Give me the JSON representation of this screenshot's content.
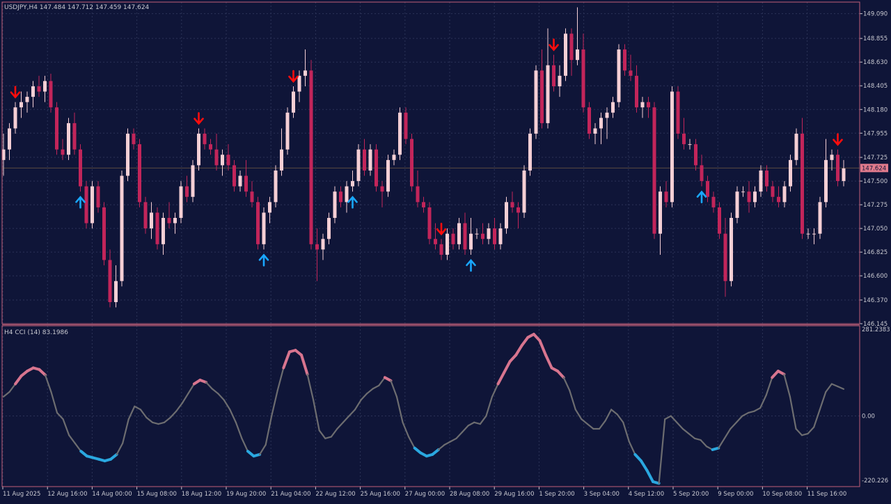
{
  "colors": {
    "background": "#0f1538",
    "border": "#c06078",
    "grid": "#2c3358",
    "text": "#c8c8d0",
    "bull": "#f5cfd5",
    "bear": "#c2255a",
    "arrow_down": "#ff0d0d",
    "arrow_up": "#19a7ff",
    "cci_neutral": "#6d6d70",
    "cci_high": "#d8758f",
    "cci_low": "#2aa8e0",
    "price_label_bg": "#e07a8c"
  },
  "main_panel": {
    "header": "USDJPY,H4  147.484 147.712 147.459 147.624",
    "current_price": "147.624"
  },
  "indicator_panel": {
    "header": "H4 CCI (14) 83.1986"
  },
  "chart_data": [
    {
      "type": "candlestick",
      "symbol": "USDJPY",
      "timeframe": "H4",
      "ohlc_last": {
        "open": 147.484,
        "high": 147.712,
        "low": 147.459,
        "close": 147.624
      },
      "ylim": [
        146.145,
        149.2
      ],
      "y_ticks": [
        "149.090",
        "148.855",
        "148.630",
        "148.405",
        "148.180",
        "147.955",
        "147.725",
        "147.500",
        "147.275",
        "147.050",
        "146.825",
        "146.600",
        "146.370",
        "146.145"
      ],
      "x_ticks": [
        "11 Aug 2025",
        "12 Aug 16:00",
        "14 Aug 00:00",
        "15 Aug 08:00",
        "18 Aug 12:00",
        "19 Aug 20:00",
        "21 Aug 04:00",
        "22 Aug 12:00",
        "25 Aug 16:00",
        "27 Aug 00:00",
        "28 Aug 08:00",
        "29 Aug 16:00",
        "1 Sep 20:00",
        "3 Sep 04:00",
        "4 Sep 12:00",
        "5 Sep 20:00",
        "9 Sep 00:00",
        "10 Sep 08:00",
        "11 Sep 16:00"
      ],
      "candles": [
        [
          147.7,
          147.95,
          147.55,
          147.8
        ],
        [
          147.8,
          148.05,
          147.7,
          148.0
        ],
        [
          148.0,
          148.25,
          147.95,
          148.2
        ],
        [
          148.2,
          148.35,
          148.1,
          148.25
        ],
        [
          148.25,
          148.35,
          148.15,
          148.3
        ],
        [
          148.3,
          148.45,
          148.2,
          148.4
        ],
        [
          148.4,
          148.5,
          148.3,
          148.35
        ],
        [
          148.35,
          148.5,
          148.25,
          148.45
        ],
        [
          148.45,
          148.52,
          148.15,
          148.2
        ],
        [
          148.2,
          148.25,
          147.75,
          147.8
        ],
        [
          147.8,
          147.9,
          147.7,
          147.75
        ],
        [
          147.75,
          148.1,
          147.7,
          148.05
        ],
        [
          148.05,
          148.15,
          147.75,
          147.8
        ],
        [
          147.8,
          147.85,
          147.4,
          147.45
        ],
        [
          147.45,
          147.5,
          147.05,
          147.1
        ],
        [
          147.1,
          147.5,
          147.05,
          147.45
        ],
        [
          147.45,
          147.5,
          147.2,
          147.25
        ],
        [
          147.25,
          147.3,
          146.7,
          146.75
        ],
        [
          146.75,
          146.85,
          146.3,
          146.35
        ],
        [
          146.35,
          146.7,
          146.3,
          146.55
        ],
        [
          146.55,
          147.6,
          146.5,
          147.55
        ],
        [
          147.55,
          148.0,
          147.5,
          147.95
        ],
        [
          147.95,
          148.0,
          147.8,
          147.85
        ],
        [
          147.85,
          147.9,
          147.25,
          147.3
        ],
        [
          147.3,
          147.35,
          147.0,
          147.05
        ],
        [
          147.05,
          147.3,
          146.95,
          147.2
        ],
        [
          147.2,
          147.25,
          146.85,
          146.9
        ],
        [
          146.9,
          147.2,
          146.8,
          147.15
        ],
        [
          147.15,
          147.3,
          147.05,
          147.1
        ],
        [
          147.1,
          147.2,
          147.0,
          147.15
        ],
        [
          147.15,
          147.5,
          147.1,
          147.45
        ],
        [
          147.45,
          147.55,
          147.3,
          147.35
        ],
        [
          147.35,
          147.7,
          147.3,
          147.65
        ],
        [
          147.65,
          148.0,
          147.6,
          147.95
        ],
        [
          147.95,
          148.0,
          147.8,
          147.85
        ],
        [
          147.85,
          147.9,
          147.75,
          147.8
        ],
        [
          147.8,
          147.95,
          147.6,
          147.65
        ],
        [
          147.65,
          147.8,
          147.55,
          147.75
        ],
        [
          147.75,
          147.85,
          147.6,
          147.65
        ],
        [
          147.65,
          147.7,
          147.4,
          147.45
        ],
        [
          147.45,
          147.6,
          147.4,
          147.55
        ],
        [
          147.55,
          147.7,
          147.35,
          147.4
        ],
        [
          147.4,
          147.5,
          147.25,
          147.3
        ],
        [
          147.3,
          147.35,
          146.85,
          146.9
        ],
        [
          146.9,
          147.25,
          146.85,
          147.2
        ],
        [
          147.2,
          147.35,
          147.1,
          147.3
        ],
        [
          147.3,
          147.65,
          147.25,
          147.6
        ],
        [
          147.6,
          148.0,
          147.55,
          147.8
        ],
        [
          147.8,
          148.2,
          147.75,
          148.15
        ],
        [
          148.15,
          148.4,
          148.1,
          148.35
        ],
        [
          148.35,
          148.55,
          148.25,
          148.5
        ],
        [
          148.5,
          148.75,
          148.4,
          148.55
        ],
        [
          148.55,
          148.65,
          146.85,
          146.9
        ],
        [
          146.9,
          147.05,
          146.55,
          146.85
        ],
        [
          146.85,
          147.0,
          146.75,
          146.95
        ],
        [
          146.95,
          147.2,
          146.9,
          147.15
        ],
        [
          147.15,
          147.45,
          147.1,
          147.4
        ],
        [
          147.4,
          147.45,
          147.25,
          147.3
        ],
        [
          147.3,
          147.5,
          147.2,
          147.45
        ],
        [
          147.45,
          147.6,
          147.4,
          147.5
        ],
        [
          147.5,
          147.85,
          147.45,
          147.8
        ],
        [
          147.8,
          147.9,
          147.55,
          147.6
        ],
        [
          147.6,
          147.85,
          147.55,
          147.8
        ],
        [
          147.8,
          147.85,
          147.4,
          147.45
        ],
        [
          147.45,
          147.5,
          147.25,
          147.4
        ],
        [
          147.4,
          147.75,
          147.35,
          147.7
        ],
        [
          147.7,
          147.8,
          147.65,
          147.75
        ],
        [
          147.75,
          148.2,
          147.7,
          148.15
        ],
        [
          148.15,
          148.2,
          147.85,
          147.9
        ],
        [
          147.9,
          147.95,
          147.4,
          147.45
        ],
        [
          147.45,
          147.6,
          147.25,
          147.3
        ],
        [
          147.3,
          147.35,
          147.2,
          147.25
        ],
        [
          147.25,
          147.3,
          146.9,
          146.95
        ],
        [
          146.95,
          147.1,
          146.85,
          146.9
        ],
        [
          146.9,
          146.95,
          146.75,
          146.8
        ],
        [
          146.8,
          147.05,
          146.75,
          147.0
        ],
        [
          147.0,
          147.05,
          146.85,
          146.9
        ],
        [
          146.9,
          147.15,
          146.85,
          147.1
        ],
        [
          147.1,
          147.2,
          146.8,
          146.85
        ],
        [
          146.85,
          147.15,
          146.8,
          147.0
        ],
        [
          147.0,
          147.05,
          146.95,
          147.0
        ],
        [
          147.0,
          147.1,
          146.9,
          146.95
        ],
        [
          146.95,
          147.1,
          146.9,
          147.05
        ],
        [
          147.05,
          147.15,
          146.85,
          146.9
        ],
        [
          146.9,
          147.1,
          146.85,
          147.05
        ],
        [
          147.05,
          147.35,
          147.0,
          147.3
        ],
        [
          147.3,
          147.4,
          147.2,
          147.25
        ],
        [
          147.25,
          147.3,
          147.05,
          147.2
        ],
        [
          147.2,
          147.65,
          147.15,
          147.6
        ],
        [
          147.6,
          148.0,
          147.55,
          147.95
        ],
        [
          147.95,
          148.6,
          147.9,
          148.55
        ],
        [
          148.55,
          148.75,
          148.0,
          148.05
        ],
        [
          148.05,
          148.95,
          148.0,
          148.6
        ],
        [
          148.6,
          148.7,
          148.35,
          148.4
        ],
        [
          148.4,
          148.6,
          148.3,
          148.5
        ],
        [
          148.5,
          148.95,
          148.45,
          148.9
        ],
        [
          148.9,
          148.95,
          148.5,
          148.65
        ],
        [
          148.65,
          149.15,
          148.6,
          148.75
        ],
        [
          148.75,
          148.9,
          148.15,
          148.2
        ],
        [
          148.2,
          148.25,
          147.9,
          147.95
        ],
        [
          147.95,
          148.05,
          147.85,
          148.0
        ],
        [
          148.0,
          148.15,
          147.85,
          148.1
        ],
        [
          148.1,
          148.2,
          147.9,
          148.15
        ],
        [
          148.15,
          148.3,
          148.1,
          148.25
        ],
        [
          148.25,
          148.8,
          148.2,
          148.75
        ],
        [
          148.75,
          148.8,
          148.5,
          148.55
        ],
        [
          148.55,
          148.7,
          148.45,
          148.5
        ],
        [
          148.5,
          148.6,
          148.15,
          148.2
        ],
        [
          148.2,
          148.3,
          148.1,
          148.25
        ],
        [
          148.25,
          148.3,
          148.1,
          148.2
        ],
        [
          148.2,
          148.25,
          146.95,
          147.0
        ],
        [
          147.0,
          147.45,
          146.8,
          147.4
        ],
        [
          147.4,
          147.5,
          147.25,
          147.3
        ],
        [
          147.3,
          148.4,
          147.25,
          148.35
        ],
        [
          148.35,
          148.4,
          147.9,
          147.95
        ],
        [
          147.95,
          148.1,
          147.8,
          147.85
        ],
        [
          147.85,
          147.9,
          147.8,
          147.85
        ],
        [
          147.85,
          147.9,
          147.6,
          147.65
        ],
        [
          147.65,
          147.75,
          147.45,
          147.5
        ],
        [
          147.5,
          147.55,
          147.3,
          147.35
        ],
        [
          147.35,
          147.4,
          147.2,
          147.25
        ],
        [
          147.25,
          147.3,
          146.95,
          147.0
        ],
        [
          147.0,
          147.15,
          146.4,
          146.55
        ],
        [
          146.55,
          147.2,
          146.5,
          147.15
        ],
        [
          147.15,
          147.45,
          147.1,
          147.4
        ],
        [
          147.4,
          147.45,
          147.35,
          147.4
        ],
        [
          147.4,
          147.5,
          147.2,
          147.3
        ],
        [
          147.3,
          147.45,
          147.25,
          147.4
        ],
        [
          147.4,
          147.65,
          147.35,
          147.6
        ],
        [
          147.6,
          147.65,
          147.4,
          147.45
        ],
        [
          147.45,
          147.5,
          147.3,
          147.35
        ],
        [
          147.35,
          147.45,
          147.25,
          147.3
        ],
        [
          147.3,
          147.5,
          147.25,
          147.45
        ],
        [
          147.45,
          147.75,
          147.4,
          147.7
        ],
        [
          147.7,
          148.0,
          147.65,
          147.95
        ],
        [
          147.95,
          148.1,
          146.95,
          147.0
        ],
        [
          147.0,
          147.05,
          146.95,
          147.0
        ],
        [
          147.0,
          147.05,
          146.9,
          147.0
        ],
        [
          147.0,
          147.35,
          146.95,
          147.3
        ],
        [
          147.3,
          147.9,
          147.25,
          147.7
        ],
        [
          147.7,
          147.8,
          147.6,
          147.75
        ],
        [
          147.75,
          147.8,
          147.45,
          147.5
        ],
        [
          147.5,
          147.7,
          147.45,
          147.62
        ]
      ],
      "arrows_down": [
        2,
        33,
        49,
        74,
        93,
        141
      ],
      "arrows_up": [
        13,
        44,
        59,
        79,
        118
      ]
    },
    {
      "type": "line",
      "name": "H4 CCI (14)",
      "ylim": [
        -220.226,
        281.2383
      ],
      "y_ticks": [
        "281.2383",
        "0.00",
        "-220.226"
      ],
      "overbought": 100,
      "oversold": -100,
      "values": [
        60,
        75,
        100,
        125,
        140,
        150,
        145,
        128,
        75,
        10,
        -10,
        -60,
        -85,
        -110,
        -125,
        -130,
        -135,
        -140,
        -135,
        -120,
        -85,
        -10,
        30,
        20,
        -5,
        -20,
        -25,
        -20,
        -5,
        15,
        40,
        70,
        100,
        112,
        105,
        85,
        70,
        50,
        20,
        -20,
        -70,
        -110,
        -125,
        -120,
        -90,
        0,
        80,
        150,
        200,
        205,
        190,
        130,
        50,
        -45,
        -70,
        -65,
        -40,
        -20,
        0,
        20,
        50,
        70,
        85,
        95,
        120,
        110,
        60,
        -20,
        -65,
        -100,
        -115,
        -125,
        -120,
        -105,
        -90,
        -80,
        -70,
        -50,
        -30,
        -20,
        -25,
        0,
        60,
        100,
        135,
        170,
        190,
        220,
        245,
        255,
        235,
        190,
        150,
        140,
        120,
        80,
        20,
        -10,
        -25,
        -40,
        -40,
        -15,
        20,
        5,
        -20,
        -80,
        -120,
        -140,
        -170,
        -205,
        -210,
        -10,
        0,
        -20,
        -40,
        -55,
        -70,
        -75,
        -95,
        -105,
        -100,
        -70,
        -40,
        -20,
        0,
        10,
        15,
        25,
        65,
        120,
        140,
        130,
        60,
        -40,
        -60,
        -55,
        -35,
        20,
        75,
        100,
        92,
        84
      ]
    }
  ]
}
